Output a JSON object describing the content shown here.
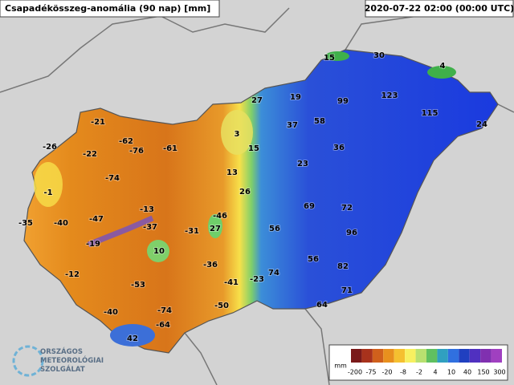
{
  "header": {
    "title": "Csapadékösszeg-anomália (90 nap) [mm]",
    "timestamp": "2020-07-22 02:00 (00:00 UTC)"
  },
  "stations": [
    15,
    30,
    4,
    27,
    19,
    99,
    123,
    115,
    24,
    3,
    37,
    58,
    15,
    36,
    23,
    13,
    26,
    -21,
    -26,
    -62,
    -76,
    -61,
    -22,
    -74,
    -1,
    69,
    72,
    -13,
    -46,
    -35,
    -40,
    -47,
    -37,
    -31,
    27,
    56,
    96,
    -19,
    10,
    56,
    82,
    -12,
    -36,
    -41,
    -23,
    74,
    -53,
    71,
    -50,
    64,
    -40,
    -74,
    -64,
    42
  ],
  "legend": {
    "unit": "mm",
    "labels": [
      "-200",
      "-75",
      "-20",
      "-8",
      "-2",
      "4",
      "10",
      "40",
      "150",
      "300"
    ]
  },
  "logo": {
    "lines": [
      "ORSZÁGOS",
      "METEOROLÓGIAI",
      "SZOLGÁLAT"
    ]
  }
}
